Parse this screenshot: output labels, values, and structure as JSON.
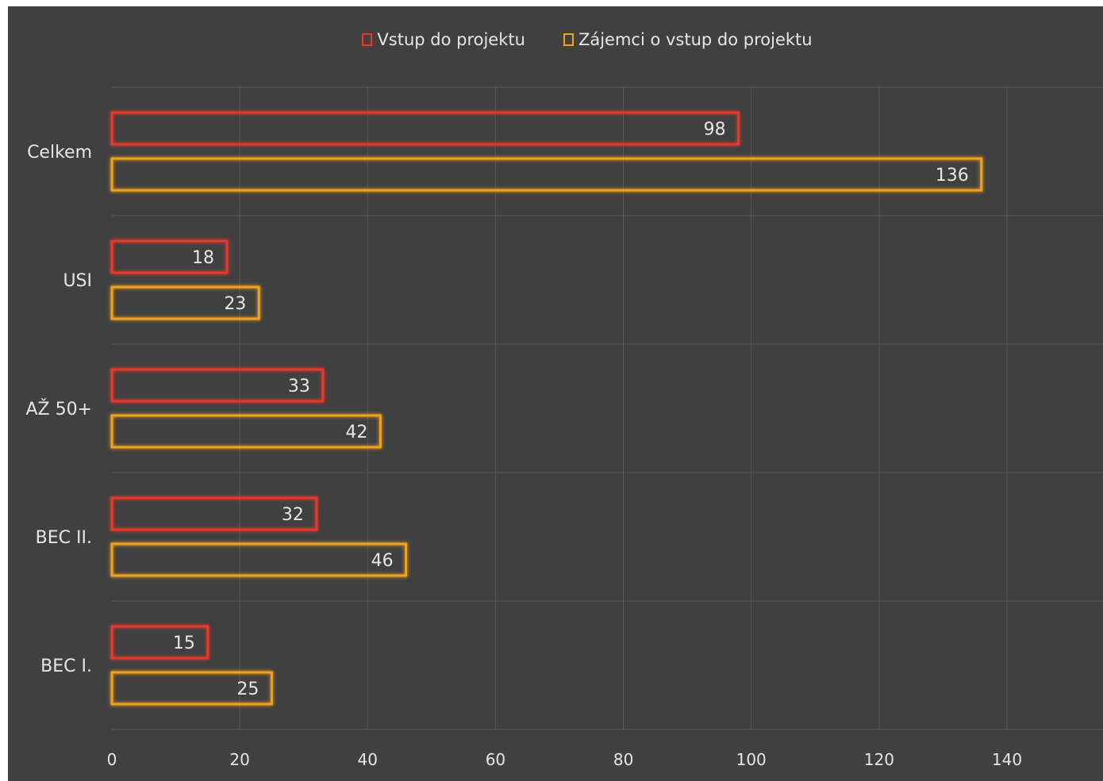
{
  "chart_data": {
    "type": "bar",
    "orientation": "horizontal",
    "categories": [
      "Celkem",
      "USI",
      "AŽ 50+",
      "BEC II.",
      "BEC I."
    ],
    "series": [
      {
        "name": "Vstup do projektu",
        "values": [
          98,
          18,
          33,
          32,
          15
        ],
        "color": "#e8392a"
      },
      {
        "name": "Zájemci o vstup do projektu",
        "values": [
          136,
          23,
          42,
          46,
          25
        ],
        "color": "#f0a21e"
      }
    ],
    "xticks": [
      0,
      20,
      40,
      60,
      80,
      100,
      120,
      140
    ],
    "xlim": [
      0,
      140
    ],
    "grid": true,
    "legend_position": "top",
    "title": "",
    "xlabel": "",
    "ylabel": ""
  },
  "colors": {
    "background": "#404040",
    "grid": "#575757",
    "text": "#e6e6e6"
  }
}
